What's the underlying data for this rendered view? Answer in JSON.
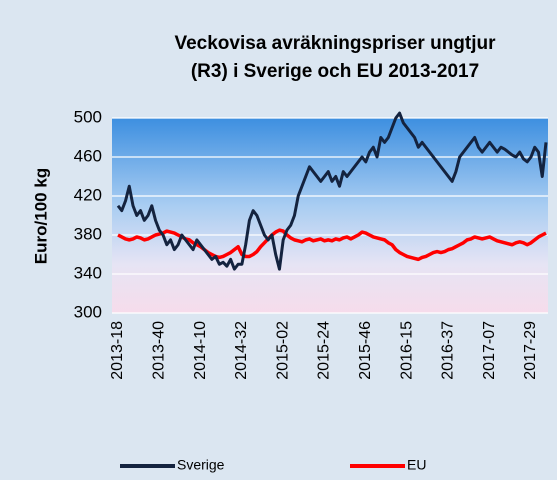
{
  "chart_data": {
    "type": "line",
    "title": "Veckovisa avräkningspriser ungtjur",
    "subtitle": "(R3) i Sverige och EU 2013-2017",
    "y_label": "Euro/100 kg",
    "ylim": [
      300,
      500
    ],
    "yticks": [
      300,
      340,
      380,
      420,
      460,
      500
    ],
    "grid": true,
    "legend": "bottom",
    "categories": [
      "2013-18",
      null,
      null,
      null,
      null,
      null,
      null,
      null,
      null,
      null,
      null,
      "2013-40",
      null,
      null,
      null,
      null,
      null,
      null,
      null,
      null,
      null,
      null,
      "2014-10",
      null,
      null,
      null,
      null,
      null,
      null,
      null,
      null,
      null,
      null,
      "2014-32",
      null,
      null,
      null,
      null,
      null,
      null,
      null,
      null,
      null,
      null,
      "2015-02",
      null,
      null,
      null,
      null,
      null,
      null,
      null,
      null,
      null,
      null,
      "2015-24",
      null,
      null,
      null,
      null,
      null,
      null,
      null,
      null,
      null,
      null,
      "2015-46",
      null,
      null,
      null,
      null,
      null,
      null,
      null,
      null,
      null,
      null,
      "2016-15",
      null,
      null,
      null,
      null,
      null,
      null,
      null,
      null,
      null,
      null,
      "2016-37",
      null,
      null,
      null,
      null,
      null,
      null,
      null,
      null,
      null,
      null,
      "2017-07",
      null,
      null,
      null,
      null,
      null,
      null,
      null,
      null,
      null,
      null,
      "2017-29",
      null,
      null,
      null,
      null
    ],
    "series": [
      {
        "name": "Sverige",
        "color": "#14233f",
        "values": [
          410,
          405,
          415,
          430,
          410,
          400,
          405,
          395,
          400,
          410,
          395,
          385,
          380,
          370,
          375,
          365,
          370,
          380,
          375,
          370,
          365,
          375,
          370,
          365,
          360,
          355,
          358,
          350,
          352,
          348,
          355,
          345,
          350,
          350,
          370,
          395,
          405,
          400,
          390,
          380,
          375,
          380,
          360,
          345,
          375,
          385,
          390,
          400,
          420,
          430,
          440,
          450,
          445,
          440,
          435,
          440,
          445,
          435,
          440,
          430,
          445,
          440,
          445,
          450,
          455,
          460,
          455,
          465,
          470,
          460,
          480,
          475,
          480,
          490,
          500,
          505,
          495,
          490,
          485,
          480,
          470,
          475,
          470,
          465,
          460,
          455,
          450,
          445,
          440,
          435,
          445,
          460,
          465,
          470,
          475,
          480,
          470,
          465,
          470,
          475,
          470,
          465,
          470,
          468,
          465,
          462,
          460,
          465,
          458,
          455,
          460,
          470,
          465,
          440,
          475
        ]
      },
      {
        "name": "EU",
        "color": "#ff0000",
        "values": [
          380,
          378,
          376,
          375,
          376,
          378,
          377,
          375,
          376,
          378,
          380,
          381,
          382,
          384,
          383,
          382,
          380,
          378,
          376,
          375,
          372,
          370,
          368,
          365,
          362,
          360,
          358,
          357,
          358,
          360,
          362,
          365,
          368,
          360,
          358,
          358,
          360,
          363,
          368,
          372,
          376,
          380,
          383,
          385,
          384,
          380,
          377,
          375,
          374,
          373,
          375,
          376,
          374,
          375,
          376,
          374,
          375,
          374,
          376,
          375,
          377,
          378,
          376,
          378,
          380,
          383,
          382,
          380,
          378,
          377,
          376,
          375,
          372,
          370,
          365,
          362,
          360,
          358,
          357,
          356,
          355,
          357,
          358,
          360,
          362,
          363,
          362,
          363,
          365,
          366,
          368,
          370,
          372,
          375,
          376,
          378,
          377,
          376,
          377,
          378,
          376,
          374,
          373,
          372,
          371,
          370,
          372,
          373,
          372,
          370,
          372,
          375,
          378,
          380,
          382
        ]
      }
    ]
  }
}
